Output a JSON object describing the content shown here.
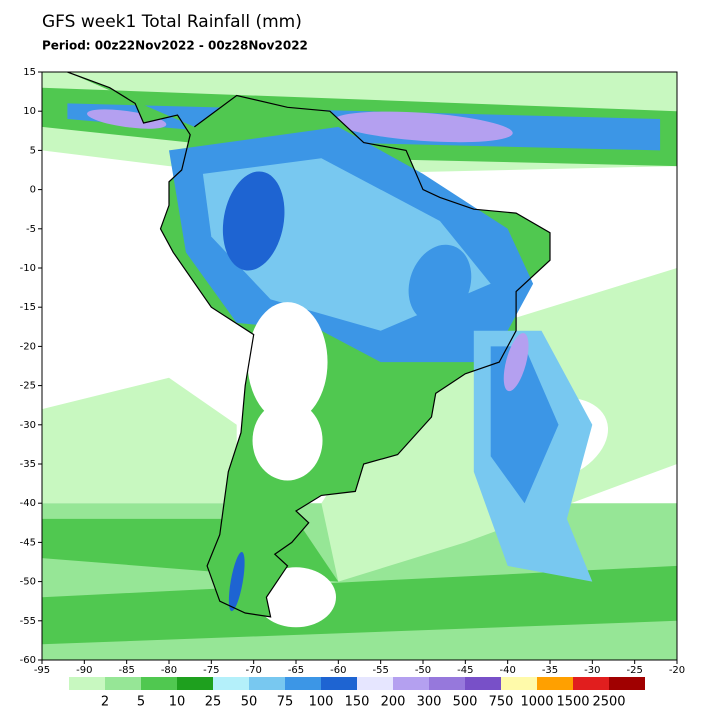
{
  "title": "GFS week1 Total Rainfall (mm)",
  "subtitle": "Period: 00z22Nov2022 - 00z28Nov2022",
  "map": {
    "xlim": [
      -95,
      -20
    ],
    "ylim": [
      -60,
      15
    ],
    "xticks": [
      -95,
      -90,
      -85,
      -80,
      -75,
      -70,
      -65,
      -60,
      -55,
      -50,
      -45,
      -40,
      -35,
      -30,
      -25,
      -20
    ],
    "yticks": [
      15,
      10,
      5,
      0,
      -5,
      -10,
      -15,
      -20,
      -25,
      -30,
      -35,
      -40,
      -45,
      -50,
      -55,
      -60
    ]
  },
  "colorbar": {
    "labels": [
      2,
      5,
      10,
      25,
      50,
      75,
      100,
      150,
      200,
      300,
      500,
      750,
      1000,
      1500,
      2500
    ],
    "colors": [
      "#c8f8c0",
      "#96e696",
      "#50c850",
      "#1ea01e",
      "#b4f0fa",
      "#78c8f0",
      "#3c96e6",
      "#1e64d2",
      "#e6e6ff",
      "#b4a0f0",
      "#9678dc",
      "#7850c8",
      "#fffaaa",
      "#ffa000",
      "#e11e1e",
      "#a00000"
    ]
  }
}
